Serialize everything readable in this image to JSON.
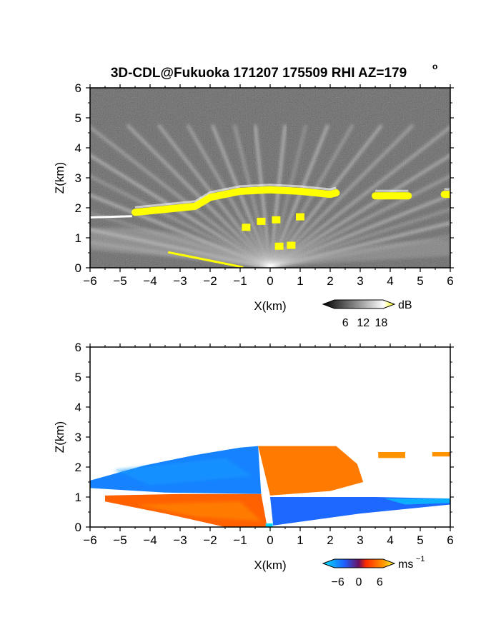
{
  "figure": {
    "title": "3D-CDL@Fukuoka 171207 175509 RHI AZ=179",
    "title_suffix": "o"
  },
  "chart_data": [
    {
      "type": "heatmap",
      "panel": "top",
      "quantity": "backscatter SNR",
      "xlabel": "X(km)",
      "ylabel": "Z(km)",
      "xlim": [
        -6,
        6
      ],
      "ylim": [
        0,
        6
      ],
      "xticks": [
        -6,
        -5,
        -4,
        -3,
        -2,
        -1,
        0,
        1,
        2,
        3,
        4,
        5,
        6
      ],
      "yticks": [
        0,
        1,
        2,
        3,
        4,
        5,
        6
      ],
      "colorbar": {
        "unit": "dB",
        "ticks": [
          6,
          12,
          18
        ],
        "range": [
          0,
          21
        ],
        "colors": [
          "#000000",
          "#ffffff",
          "#ffff00"
        ]
      },
      "features": [
        {
          "name": "cloud base (high SNR, yellow)",
          "x": [
            -4.5,
            -3.5,
            -2.5,
            -2.0,
            -1.0,
            0.0,
            1.0,
            2.0,
            2.2
          ],
          "z": [
            1.85,
            1.95,
            2.05,
            2.35,
            2.55,
            2.6,
            2.55,
            2.45,
            2.5
          ]
        },
        {
          "name": "cloud patch",
          "x": [
            3.5,
            4.6
          ],
          "z": [
            2.4,
            2.4
          ]
        },
        {
          "name": "cloud patch",
          "x": [
            5.8,
            6.0
          ],
          "z": [
            2.45,
            2.45
          ]
        }
      ]
    },
    {
      "type": "heatmap",
      "panel": "bottom",
      "quantity": "radial velocity",
      "xlabel": "X(km)",
      "ylabel": "Z(km)",
      "xlim": [
        -6,
        6
      ],
      "ylim": [
        0,
        6
      ],
      "xticks": [
        -6,
        -5,
        -4,
        -3,
        -2,
        -1,
        0,
        1,
        2,
        3,
        4,
        5,
        6
      ],
      "yticks": [
        0,
        1,
        2,
        3,
        4,
        5,
        6
      ],
      "colorbar": {
        "unit": "ms",
        "unit_exponent": "−1",
        "ticks": [
          "−6",
          "0",
          "6"
        ],
        "range": [
          -9,
          9
        ],
        "colors": [
          "#00e5ff",
          "#1f5fff",
          "#ff2a00",
          "#ff9a00",
          "#ffff40"
        ]
      },
      "regions": [
        {
          "name": "upper left (toward lidar)",
          "x_range": [
            -6,
            -0.5
          ],
          "z_range": [
            1.2,
            2.7
          ],
          "velocity": -5
        },
        {
          "name": "upper right (away)",
          "x_range": [
            -0.3,
            3.0
          ],
          "z_range": [
            1.1,
            2.7
          ],
          "velocity": 5
        },
        {
          "name": "lower left (away)",
          "x_range": [
            -5.5,
            -0.2
          ],
          "z_range": [
            0.0,
            1.1
          ],
          "velocity": 4
        },
        {
          "name": "lower right (toward)",
          "x_range": [
            0.0,
            6.0
          ],
          "z_range": [
            0.3,
            1.0
          ],
          "velocity": -4
        },
        {
          "name": "right cloud patch",
          "x_range": [
            3.5,
            6.0
          ],
          "z_range": [
            2.3,
            2.5
          ],
          "velocity": 6
        }
      ]
    }
  ]
}
